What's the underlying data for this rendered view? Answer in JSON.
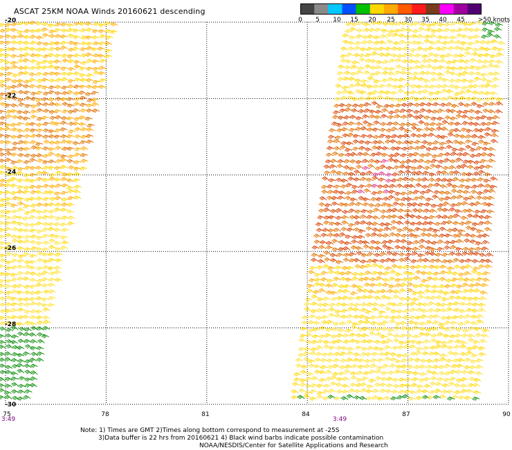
{
  "title": "ASCAT 25KM NOAA Winds 20160621 descending",
  "colorbar": {
    "labels": [
      "0",
      "5",
      "10",
      "15",
      "20",
      "25",
      "30",
      "35",
      "40",
      "45",
      ">50 knots"
    ],
    "colors": [
      "#444444",
      "#8a8a8a",
      "#00c8ff",
      "#0050ff",
      "#00c000",
      "#ffd700",
      "#ffaa00",
      "#ff5a00",
      "#ff1a1a",
      "#7a3b1b",
      "#ff00ff",
      "#a000a0",
      "#500070"
    ]
  },
  "axes": {
    "lat_labels": [
      "-20",
      "-22",
      "-24",
      "-26",
      "-28",
      "-30"
    ],
    "lon_labels": [
      "75",
      "78",
      "81",
      "84",
      "87",
      "90"
    ],
    "lat_range": [
      -30,
      -20
    ],
    "lon_range": [
      75,
      90
    ]
  },
  "times": [
    "3:49",
    "3:49"
  ],
  "notes": [
    "Note: 1) Times are GMT 2)Times along bottom correspond to measurement at -25S",
    "3)Data buffer is 22 hrs from 20160621 4) Black wind barbs indicate possible contamination",
    "NOAA/NESDIS/Center for Satellite Applications and Research"
  ],
  "swaths": [
    {
      "name": "west-swath",
      "wind_knots_typical": "20-30"
    },
    {
      "name": "east-swath",
      "wind_knots_typical": "20-40"
    }
  ]
}
